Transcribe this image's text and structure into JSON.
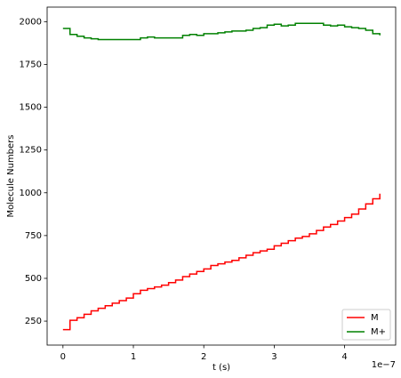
{
  "chart_data": {
    "type": "step",
    "xlabel": "t (s)",
    "ylabel": "Molecule Numbers",
    "x_offset_label": "1e−7",
    "x": [
      0,
      0.1,
      0.2,
      0.3,
      0.4,
      0.5,
      0.6,
      0.7,
      0.8,
      0.9,
      1.0,
      1.1,
      1.2,
      1.3,
      1.4,
      1.5,
      1.6,
      1.7,
      1.8,
      1.9,
      2.0,
      2.1,
      2.2,
      2.3,
      2.4,
      2.5,
      2.6,
      2.7,
      2.8,
      2.9,
      3.0,
      3.1,
      3.2,
      3.3,
      3.4,
      3.5,
      3.6,
      3.7,
      3.8,
      3.9,
      4.0,
      4.1,
      4.2,
      4.3,
      4.4,
      4.5
    ],
    "series": [
      {
        "name": "M",
        "color": "#ff0000",
        "values": [
          200,
          255,
          270,
          290,
          310,
          325,
          340,
          355,
          370,
          385,
          410,
          430,
          440,
          450,
          460,
          475,
          490,
          510,
          525,
          540,
          555,
          575,
          585,
          595,
          605,
          620,
          635,
          650,
          660,
          670,
          690,
          705,
          720,
          735,
          745,
          760,
          780,
          800,
          815,
          835,
          855,
          875,
          905,
          935,
          965,
          995
        ]
      },
      {
        "name": "M+",
        "color": "#008000",
        "values": [
          1960,
          1925,
          1915,
          1905,
          1900,
          1895,
          1895,
          1895,
          1895,
          1895,
          1895,
          1905,
          1910,
          1905,
          1905,
          1905,
          1905,
          1920,
          1925,
          1920,
          1930,
          1930,
          1935,
          1940,
          1945,
          1945,
          1950,
          1960,
          1965,
          1980,
          1985,
          1975,
          1980,
          1990,
          1990,
          1990,
          1990,
          1980,
          1975,
          1980,
          1970,
          1965,
          1960,
          1950,
          1930,
          1920
        ]
      }
    ],
    "xlim": [
      -0.225,
      4.725
    ],
    "xticks": [
      0,
      1,
      2,
      3,
      4
    ],
    "ylim": [
      110,
      2085
    ],
    "yticks": [
      250,
      500,
      750,
      1000,
      1250,
      1500,
      1750,
      2000
    ],
    "legend": "lower right"
  }
}
